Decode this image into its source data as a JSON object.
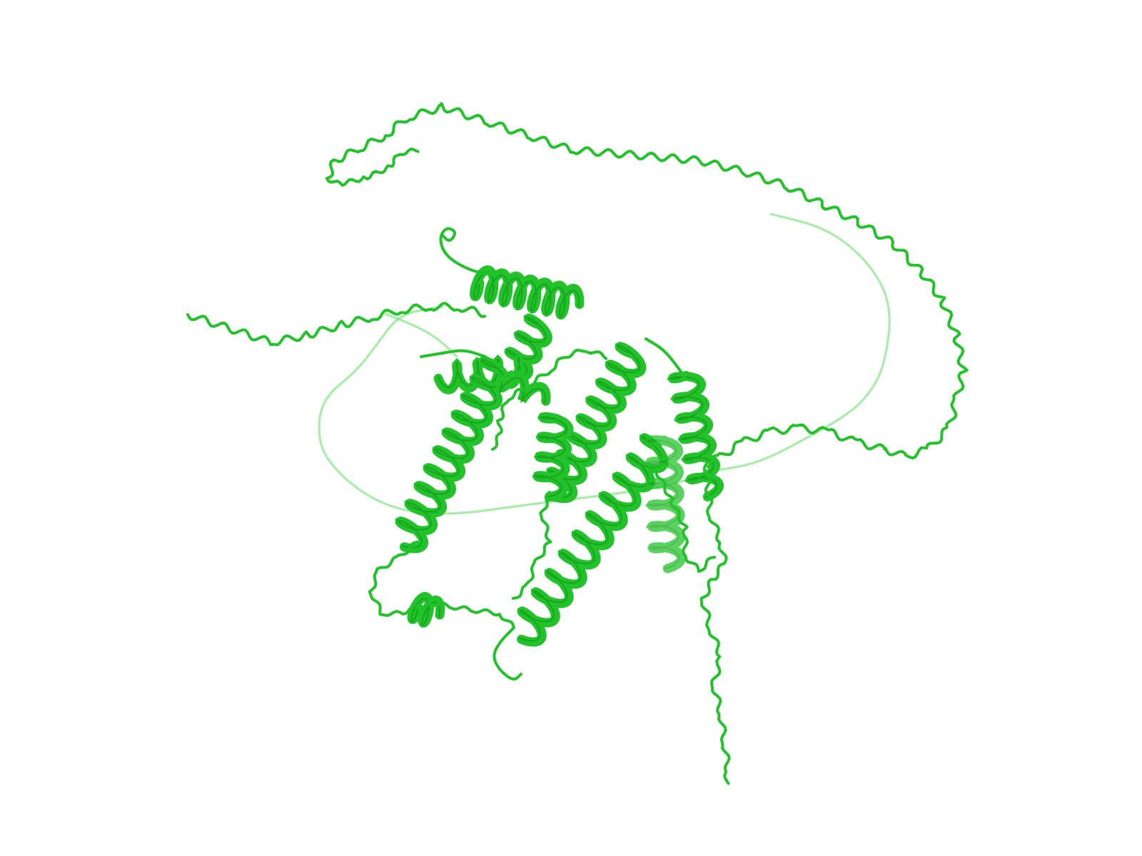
{
  "render": {
    "background": "#ffffff",
    "ribbon_color": "#22c32a",
    "ribbon_shade": "#138a18",
    "ribbon_light": "#6fe06f",
    "style": "cartoon"
  },
  "structure": {
    "representation": "protein-cartoon",
    "secondary_structure": [
      "alpha-helix",
      "coil"
    ]
  }
}
